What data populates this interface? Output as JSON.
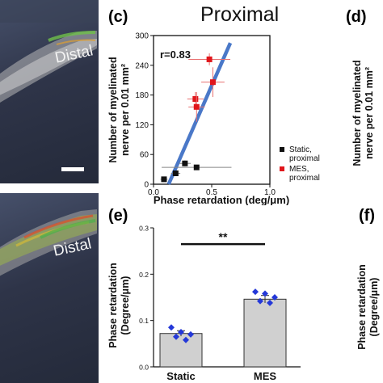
{
  "images": {
    "top": {
      "label": "Distal"
    },
    "bottom": {
      "label": "Distal"
    }
  },
  "panels": {
    "c": {
      "letter": "(c)",
      "title": "Proximal",
      "r_label": "r=0.83"
    },
    "d": {
      "letter": "(d)"
    },
    "e": {
      "letter": "(e)"
    },
    "f": {
      "letter": "(f)"
    }
  },
  "chart_data": [
    {
      "type": "scatter",
      "title": "Proximal",
      "xlabel": "Phase retardation (deg/μm)",
      "ylabel_lines": [
        "Number of myelinated",
        "nerve per 0.01 mm²"
      ],
      "xlim": [
        0,
        1.0
      ],
      "ylim": [
        0,
        300
      ],
      "xticks": [
        "0.0",
        "0.5",
        "1.0"
      ],
      "yticks": [
        "0",
        "60",
        "120",
        "180",
        "240",
        "300"
      ],
      "annotation": "r=0.83",
      "fit_line": {
        "x": [
          0.13,
          0.66
        ],
        "y": [
          0,
          285
        ],
        "color": "#4a78c8"
      },
      "series": [
        {
          "name": "Static, proximal",
          "legend_lines": [
            "Static,",
            "proximal"
          ],
          "color": "#111111",
          "points": [
            {
              "x": 0.09,
              "y": 10,
              "xerr": 0.03,
              "yerr": 0
            },
            {
              "x": 0.19,
              "y": 22,
              "xerr": 0.04,
              "yerr": 4
            },
            {
              "x": 0.27,
              "y": 42,
              "xerr": 0.05,
              "yerr": 6
            },
            {
              "x": 0.37,
              "y": 34,
              "xerr": 0.3,
              "yerr": 4
            }
          ]
        },
        {
          "name": "MES, proximal",
          "legend_lines": [
            "MES,",
            "proximal"
          ],
          "color": "#e0161b",
          "points": [
            {
              "x": 0.48,
              "y": 252,
              "xerr": 0.18,
              "yerr": 12
            },
            {
              "x": 0.51,
              "y": 206,
              "xerr": 0.1,
              "yerr": 30
            },
            {
              "x": 0.36,
              "y": 172,
              "xerr": 0.07,
              "yerr": 14
            },
            {
              "x": 0.37,
              "y": 156,
              "xerr": 0.07,
              "yerr": 30
            }
          ]
        }
      ],
      "legend_position": "bottom-right"
    },
    {
      "type": "bar",
      "title": "",
      "xlabel": "",
      "ylabel_lines": [
        "Phase retardation",
        "(Degree/μm)"
      ],
      "ylim": [
        0,
        0.3
      ],
      "yticks": [
        "0.0",
        "0.1",
        "0.2",
        "0.3"
      ],
      "categories": [
        "Static",
        "MES"
      ],
      "values": [
        0.072,
        0.146
      ],
      "errors": [
        0.006,
        0.008
      ],
      "points": [
        [
          0.085,
          0.075,
          0.07,
          0.065,
          0.058
        ],
        [
          0.162,
          0.158,
          0.15,
          0.142,
          0.138
        ]
      ],
      "bar_color": "#d0d0d0",
      "point_color": "#2438d8",
      "significance": "**"
    },
    {
      "type": "scatter",
      "ylabel_lines": [
        "Number of myelinated",
        "nerve per 0.01 mm²"
      ]
    },
    {
      "type": "bar",
      "ylabel_lines": [
        "Phase retardation",
        "(Degree/μm)"
      ]
    }
  ]
}
